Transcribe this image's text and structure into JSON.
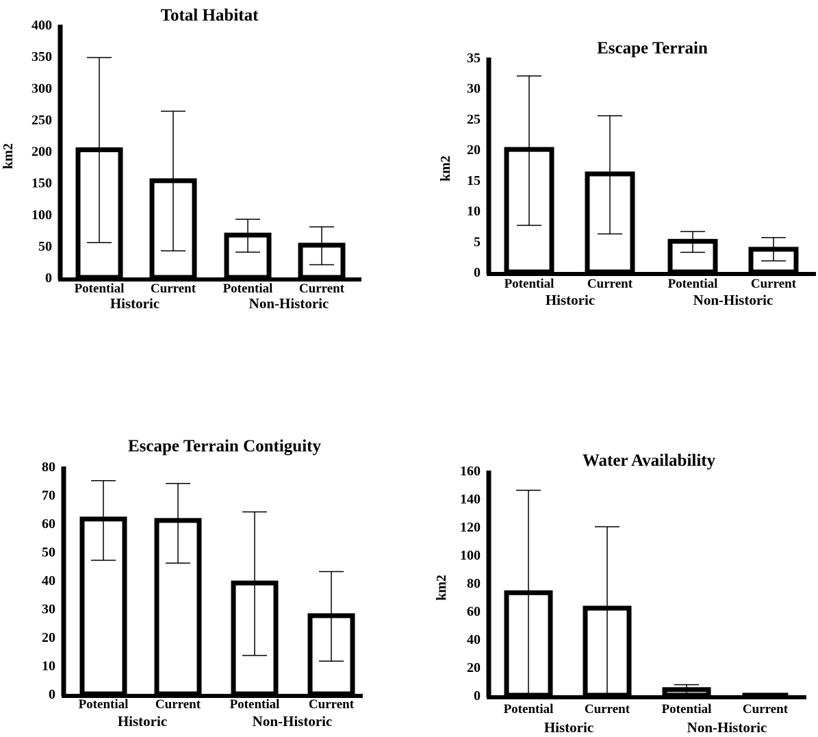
{
  "chart_data": [
    {
      "type": "bar",
      "title": "Total Habitat",
      "ylabel": "km2",
      "ylim": [
        0,
        400
      ],
      "yticks": [
        "0",
        "50",
        "100",
        "150",
        "200",
        "250",
        "300",
        "350",
        "400"
      ],
      "categories": [
        "Potential",
        "Current",
        "Potential",
        "Current"
      ],
      "groups": [
        "Historic",
        "Non-Historic"
      ],
      "values": [
        202,
        153,
        67,
        51
      ],
      "error_low": [
        55,
        42,
        40,
        20
      ],
      "error_high": [
        348,
        263,
        92,
        80
      ]
    },
    {
      "type": "bar",
      "title": "Escape Terrain",
      "ylabel": "km2",
      "ylim": [
        0,
        35
      ],
      "yticks": [
        "0",
        "5",
        "10",
        "15",
        "20",
        "25",
        "30",
        "35"
      ],
      "categories": [
        "Potential",
        "Current",
        "Potential",
        "Current"
      ],
      "groups": [
        "Historic",
        "Non-Historic"
      ],
      "values": [
        20,
        16,
        5,
        3.7
      ],
      "error_low": [
        7.6,
        6.2,
        3.2,
        1.8
      ],
      "error_high": [
        32,
        25.5,
        6.6,
        5.6
      ]
    },
    {
      "type": "bar",
      "title": "Escape Terrain Contiguity",
      "ylabel": "",
      "ylim": [
        0,
        80
      ],
      "yticks": [
        "0",
        "10",
        "20",
        "30",
        "40",
        "50",
        "60",
        "70",
        "80"
      ],
      "categories": [
        "Potential",
        "Current",
        "Potential",
        "Current"
      ],
      "groups": [
        "Historic",
        "Non-Historic"
      ],
      "values": [
        61.5,
        61,
        39,
        27.5
      ],
      "error_low": [
        47,
        46,
        13.5,
        11.5
      ],
      "error_high": [
        75,
        74,
        64,
        43
      ]
    },
    {
      "type": "bar",
      "title": "Water Availability",
      "ylabel": "km2",
      "ylim": [
        0,
        160
      ],
      "yticks": [
        "0",
        "20",
        "40",
        "60",
        "80",
        "100",
        "120",
        "140",
        "160"
      ],
      "categories": [
        "Potential",
        "Current",
        "Potential",
        "Current"
      ],
      "groups": [
        "Historic",
        "Non-Historic"
      ],
      "values": [
        73,
        62,
        4,
        1
      ],
      "error_low": [
        0,
        0,
        0,
        0
      ],
      "error_high": [
        146,
        120,
        7.5,
        1
      ]
    }
  ]
}
